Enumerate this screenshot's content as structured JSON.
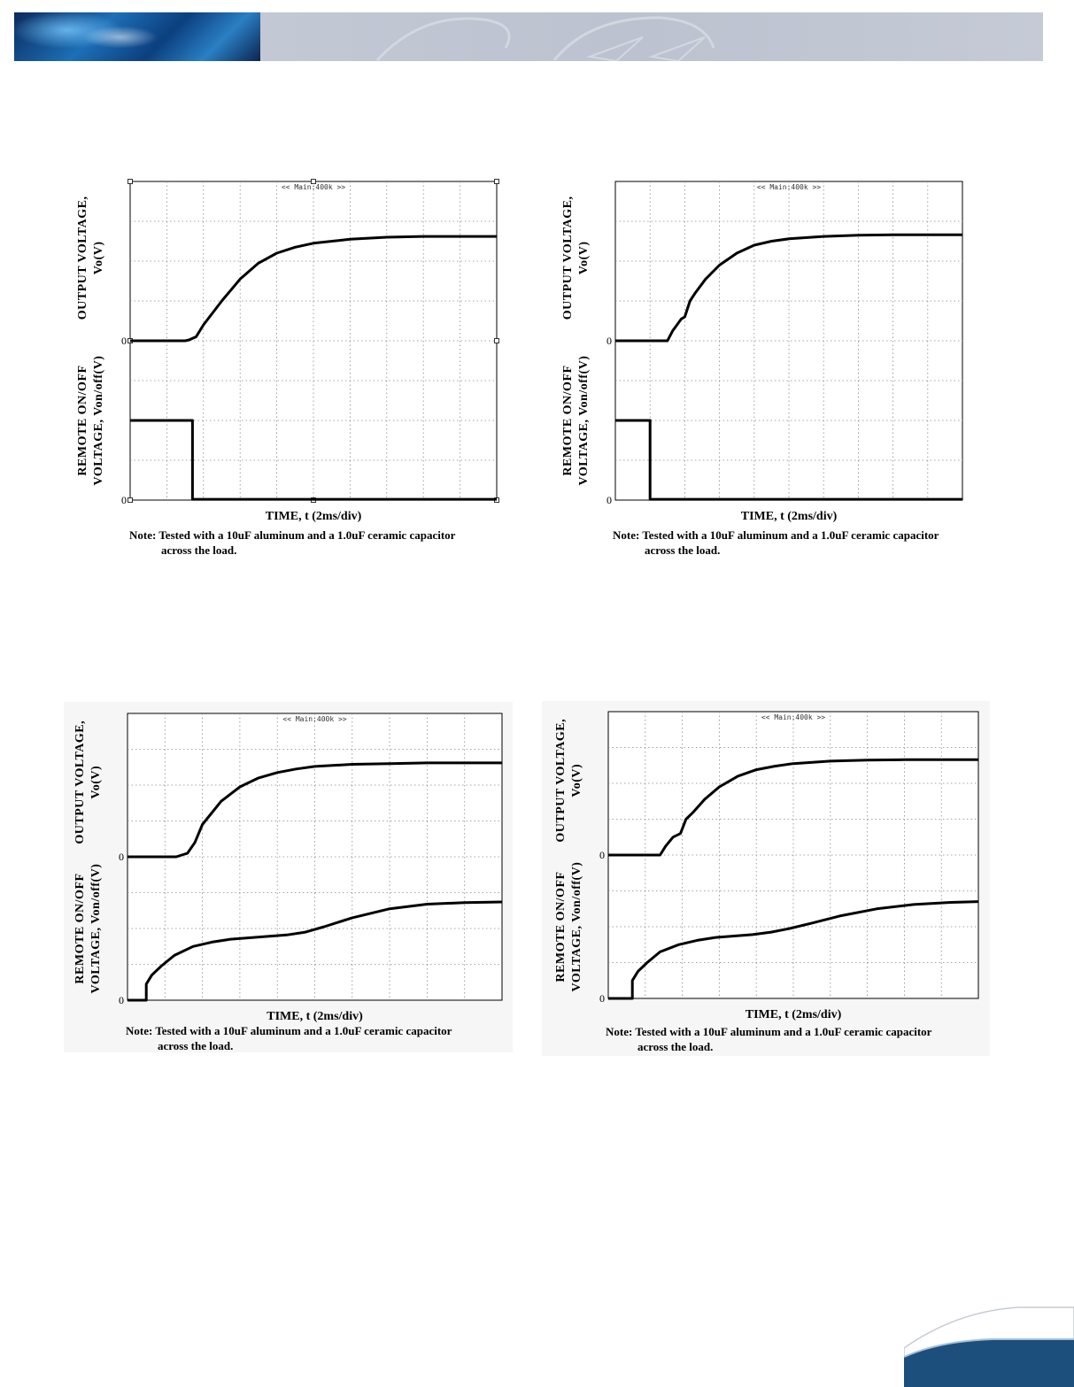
{
  "page": {
    "header_banner": "header-banner",
    "footer_logo": "corner-swoosh"
  },
  "chart_data": [
    {
      "type": "line",
      "panel": "top-left",
      "label_top": "<< Main:400k >>",
      "xlabel": "TIME, t (2ms/div)",
      "ylabel_upper": [
        "OUTPUT VOLTAGE,",
        "Vo(V)"
      ],
      "ylabel_lower": [
        "REMOTE ON/OFF",
        "VOLTAGE, Von/off(V)"
      ],
      "zero_label_upper": "0",
      "zero_label_lower": "0",
      "note_line1": "Note: Tested with a 10uF aluminum and a 1.0uF ceramic capacitor",
      "note_line2": "across the load.",
      "x_divisions": 10,
      "y_divisions": 8,
      "x_unit": "ms",
      "xlim": [
        0,
        20
      ],
      "grid": true,
      "series": [
        {
          "x": [
            0,
            3.0,
            3.2,
            3.6,
            4.0,
            5.0,
            6.0,
            7.0,
            8.0,
            9.0,
            10.0,
            12.0,
            14.0,
            16.0,
            18.0,
            20.0
          ],
          "y_div": [
            4.0,
            4.0,
            4.02,
            4.1,
            4.4,
            5.0,
            5.55,
            5.95,
            6.2,
            6.35,
            6.45,
            6.55,
            6.6,
            6.62,
            6.62,
            6.62
          ]
        },
        {
          "x": [
            0,
            3.4,
            3.4,
            20.0
          ],
          "y_div": [
            2.0,
            2.0,
            0.02,
            0.02
          ]
        }
      ]
    },
    {
      "type": "line",
      "panel": "top-right",
      "label_top": "<< Main:400k >>",
      "xlabel": "TIME, t (2ms/div)",
      "ylabel_upper": [
        "OUTPUT VOLTAGE,",
        "Vo(V)"
      ],
      "ylabel_lower": [
        "REMOTE ON/OFF",
        "VOLTAGE, Von/off(V)"
      ],
      "zero_label_upper": "0",
      "zero_label_lower": "0",
      "note_line1": "Note: Tested with a 10uF aluminum and a 1.0uF ceramic capacitor",
      "note_line2": "across the load.",
      "x_divisions": 10,
      "y_divisions": 8,
      "x_unit": "ms",
      "xlim": [
        0,
        20
      ],
      "grid": true,
      "series": [
        {
          "x": [
            0,
            3.0,
            3.3,
            3.8,
            4.0,
            4.3,
            4.6,
            5.2,
            6.0,
            7.0,
            8.0,
            9.0,
            10.0,
            12.0,
            14.0,
            16.0,
            18.0,
            20.0
          ],
          "y_div": [
            4.0,
            4.0,
            4.25,
            4.55,
            4.6,
            5.0,
            5.2,
            5.55,
            5.9,
            6.2,
            6.4,
            6.5,
            6.56,
            6.62,
            6.65,
            6.66,
            6.66,
            6.66
          ]
        },
        {
          "x": [
            0,
            2.0,
            2.0,
            20.0
          ],
          "y_div": [
            2.0,
            2.0,
            0.02,
            0.02
          ]
        }
      ]
    },
    {
      "type": "line",
      "panel": "bottom-left",
      "label_top": "<< Main:400k >>",
      "xlabel": "TIME, t (2ms/div)",
      "ylabel_upper": [
        "OUTPUT VOLTAGE,",
        "Vo(V)"
      ],
      "ylabel_lower": [
        "REMOTE ON/OFF",
        "VOLTAGE, Von/off(V)"
      ],
      "zero_label_upper": "0",
      "zero_label_lower": "0",
      "note_line1": "Note: Tested with a 10uF aluminum and a 1.0uF ceramic capacitor",
      "note_line2": "across the load.",
      "x_divisions": 10,
      "y_divisions": 8,
      "x_unit": "ms",
      "xlim": [
        0,
        20
      ],
      "grid": true,
      "series": [
        {
          "x": [
            0,
            2.6,
            2.9,
            3.2,
            3.6,
            4.0,
            5.0,
            6.0,
            7.0,
            8.0,
            9.0,
            10.0,
            12.0,
            14.0,
            16.0,
            18.0,
            20.0
          ],
          "y_div": [
            4.0,
            4.0,
            4.05,
            4.1,
            4.4,
            4.9,
            5.55,
            5.95,
            6.2,
            6.35,
            6.45,
            6.52,
            6.58,
            6.6,
            6.62,
            6.62,
            6.62
          ]
        },
        {
          "x": [
            0,
            1.0,
            1.0,
            1.3,
            1.8,
            2.5,
            3.5,
            4.5,
            5.5,
            6.5,
            7.5,
            8.5,
            9.5,
            10.5,
            12.0,
            14.0,
            16.0,
            18.0,
            20.0
          ],
          "y_div": [
            0.0,
            0.0,
            0.45,
            0.7,
            0.95,
            1.25,
            1.5,
            1.62,
            1.7,
            1.74,
            1.78,
            1.82,
            1.9,
            2.05,
            2.3,
            2.55,
            2.68,
            2.72,
            2.74
          ]
        }
      ]
    },
    {
      "type": "line",
      "panel": "bottom-right",
      "label_top": "<< Main:400k >>",
      "xlabel": "TIME, t (2ms/div)",
      "ylabel_upper": [
        "OUTPUT VOLTAGE,",
        "Vo(V)"
      ],
      "ylabel_lower": [
        "REMOTE ON/OFF",
        "VOLTAGE, Von/off(V)"
      ],
      "zero_label_upper": "0",
      "zero_label_lower": "0",
      "note_line1": "Note: Tested with a 10uF aluminum and a 1.0uF ceramic capacitor",
      "note_line2": "across the load.",
      "x_divisions": 10,
      "y_divisions": 8,
      "x_unit": "ms",
      "xlim": [
        0,
        20
      ],
      "grid": true,
      "series": [
        {
          "x": [
            0,
            2.8,
            3.1,
            3.5,
            3.9,
            4.2,
            4.6,
            5.2,
            6.0,
            7.0,
            8.0,
            9.0,
            10.0,
            12.0,
            14.0,
            16.0,
            18.0,
            20.0
          ],
          "y_div": [
            4.0,
            4.0,
            4.25,
            4.5,
            4.6,
            5.0,
            5.2,
            5.55,
            5.9,
            6.2,
            6.38,
            6.48,
            6.55,
            6.62,
            6.65,
            6.66,
            6.66,
            6.66
          ]
        },
        {
          "x": [
            0,
            1.3,
            1.3,
            1.6,
            2.1,
            2.8,
            3.8,
            4.8,
            5.8,
            6.8,
            7.8,
            8.8,
            9.8,
            11.0,
            12.5,
            14.5,
            16.5,
            18.5,
            20.0
          ],
          "y_div": [
            0.0,
            0.0,
            0.5,
            0.75,
            1.0,
            1.3,
            1.5,
            1.62,
            1.7,
            1.74,
            1.78,
            1.85,
            1.95,
            2.1,
            2.3,
            2.5,
            2.62,
            2.68,
            2.7
          ]
        }
      ]
    }
  ]
}
